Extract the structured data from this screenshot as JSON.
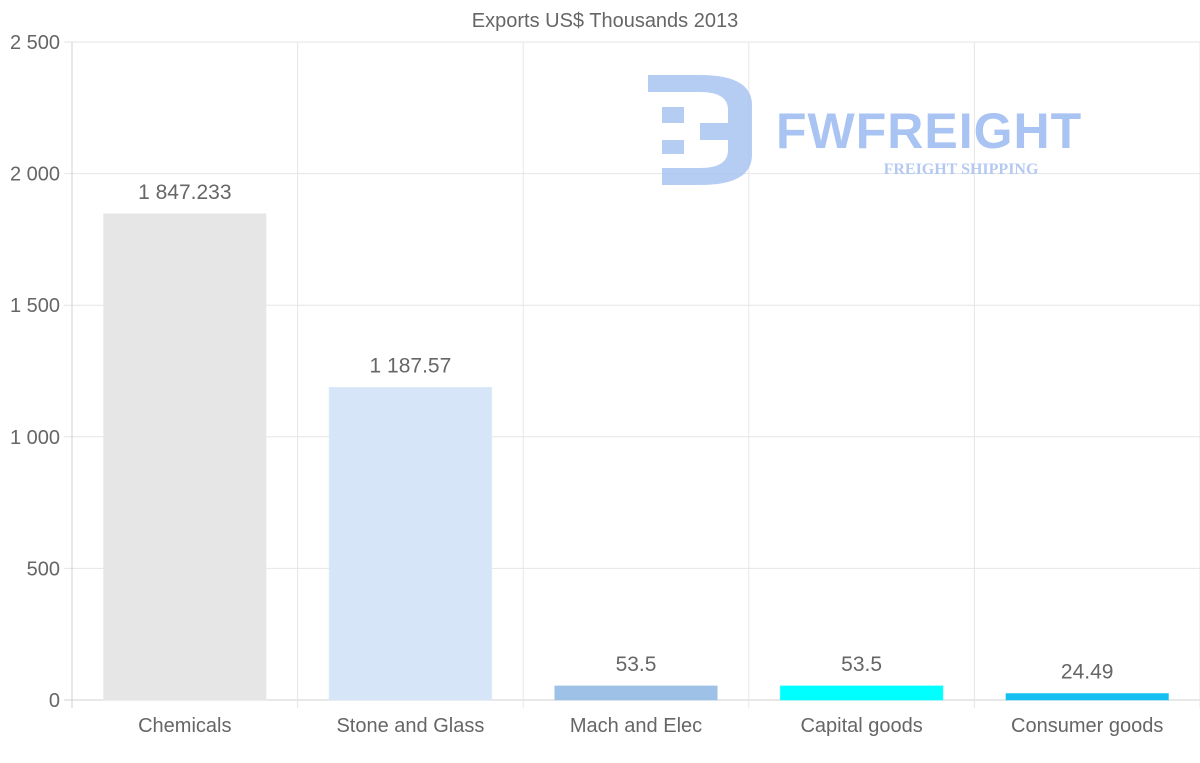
{
  "chart_data": {
    "type": "bar",
    "title": "Exports US$ Thousands 2013",
    "categories": [
      "Chemicals",
      "Stone and Glass",
      "Mach and Elec",
      "Capital goods",
      "Consumer goods"
    ],
    "values": [
      1847.233,
      1187.57,
      53.5,
      53.5,
      24.49
    ],
    "data_labels": [
      "1 847.233",
      "1 187.57",
      "53.5",
      "53.5",
      "24.49"
    ],
    "colors": [
      "#e6e6e6",
      "#d6e6f8",
      "#9ec1e8",
      "#00ffff",
      "#16bff0"
    ],
    "ylim": [
      0,
      2500
    ],
    "yticks": [
      0,
      500,
      1000,
      1500,
      2000,
      2500
    ],
    "ytick_labels": [
      "0",
      "500",
      "1 000",
      "1 500",
      "2 000",
      "2 500"
    ],
    "xlabel": "",
    "ylabel": "",
    "grid": true,
    "legend": "none"
  },
  "watermark": {
    "brand": "FWFREIGHT",
    "tagline": "FREIGHT SHIPPING",
    "color": "#a9c4f2"
  }
}
